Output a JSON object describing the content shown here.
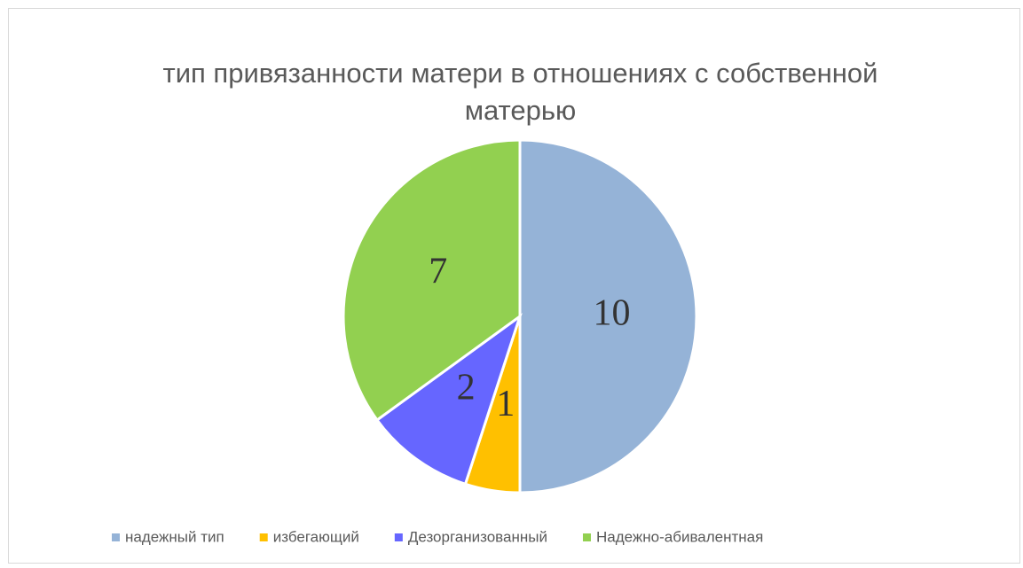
{
  "chart_data": {
    "type": "pie",
    "title": "тип привязанности матери в отношениях с собственной матерью",
    "categories": [
      "надежный тип",
      "избегающий",
      "Дезорганизованный",
      "Надежно-абивалентная"
    ],
    "values": [
      10,
      1,
      2,
      7
    ],
    "colors": [
      "#95b3d7",
      "#ffc000",
      "#6666ff",
      "#92d050"
    ],
    "legend": "bottom"
  }
}
